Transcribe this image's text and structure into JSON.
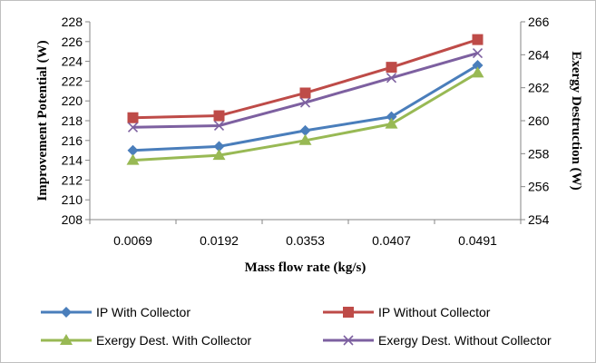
{
  "chart_data": {
    "type": "line",
    "categories": [
      "0.0069",
      "0.0192",
      "0.0353",
      "0.0407",
      "0.0491"
    ],
    "xlabel": "Mass flow rate (kg/s)",
    "ylabel": "Improvement Potential (W)",
    "y2label": "Exergy Destruction (W)",
    "ylim": [
      208,
      228
    ],
    "yticks": [
      208,
      210,
      212,
      214,
      216,
      218,
      220,
      222,
      224,
      226,
      228
    ],
    "y2lim": [
      254,
      266
    ],
    "y2ticks": [
      254,
      256,
      258,
      260,
      262,
      264,
      266
    ],
    "grid": false,
    "legend_position": "bottom",
    "series": [
      {
        "name": "IP With Collector",
        "axis": "left",
        "color": "#4a7ebb",
        "marker": "diamond",
        "values": [
          215.0,
          215.4,
          217.0,
          218.4,
          223.6
        ]
      },
      {
        "name": "IP Without Collector",
        "axis": "left",
        "color": "#be4b48",
        "marker": "square",
        "values": [
          218.3,
          218.5,
          220.8,
          223.4,
          226.2
        ]
      },
      {
        "name": "Exergy Dest. With Collector",
        "axis": "right",
        "color": "#98b954",
        "marker": "triangle",
        "values": [
          257.6,
          257.9,
          258.8,
          259.8,
          262.9
        ]
      },
      {
        "name": "Exergy Dest. Without Collector",
        "axis": "right",
        "color": "#7d60a0",
        "marker": "x",
        "values": [
          259.6,
          259.7,
          261.1,
          262.6,
          264.1
        ]
      }
    ]
  }
}
